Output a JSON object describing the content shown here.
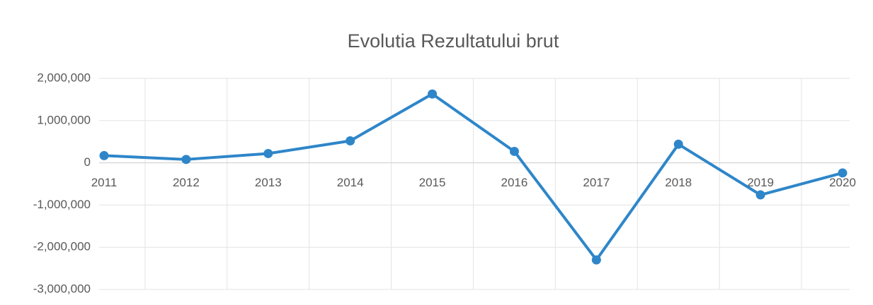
{
  "chart_data": {
    "type": "line",
    "title": "Evolutia Rezultatului brut",
    "categories": [
      "2011",
      "2012",
      "2013",
      "2014",
      "2015",
      "2016",
      "2017",
      "2018",
      "2019",
      "2020"
    ],
    "series": [
      {
        "name": "Rezultat brut",
        "color": "#2e86c9",
        "values": [
          170000,
          80000,
          220000,
          520000,
          1630000,
          270000,
          -2300000,
          440000,
          -760000,
          -240000
        ]
      }
    ],
    "ylim": [
      -3000000,
      2000000
    ],
    "yticks": [
      {
        "value": -3000000,
        "label": "-3,000,000"
      },
      {
        "value": -2000000,
        "label": "-2,000,000"
      },
      {
        "value": -1000000,
        "label": "-1,000,000"
      },
      0,
      {
        "value": 1000000,
        "label": "1,000,000"
      },
      {
        "value": 2000000,
        "label": "2,000,000"
      }
    ],
    "grid": true
  }
}
